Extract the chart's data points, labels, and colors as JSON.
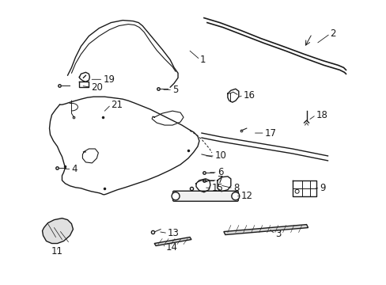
{
  "background_color": "#ffffff",
  "line_color": "#1a1a1a",
  "text_color": "#1a1a1a",
  "figsize": [
    4.89,
    3.6
  ],
  "dpi": 100
}
